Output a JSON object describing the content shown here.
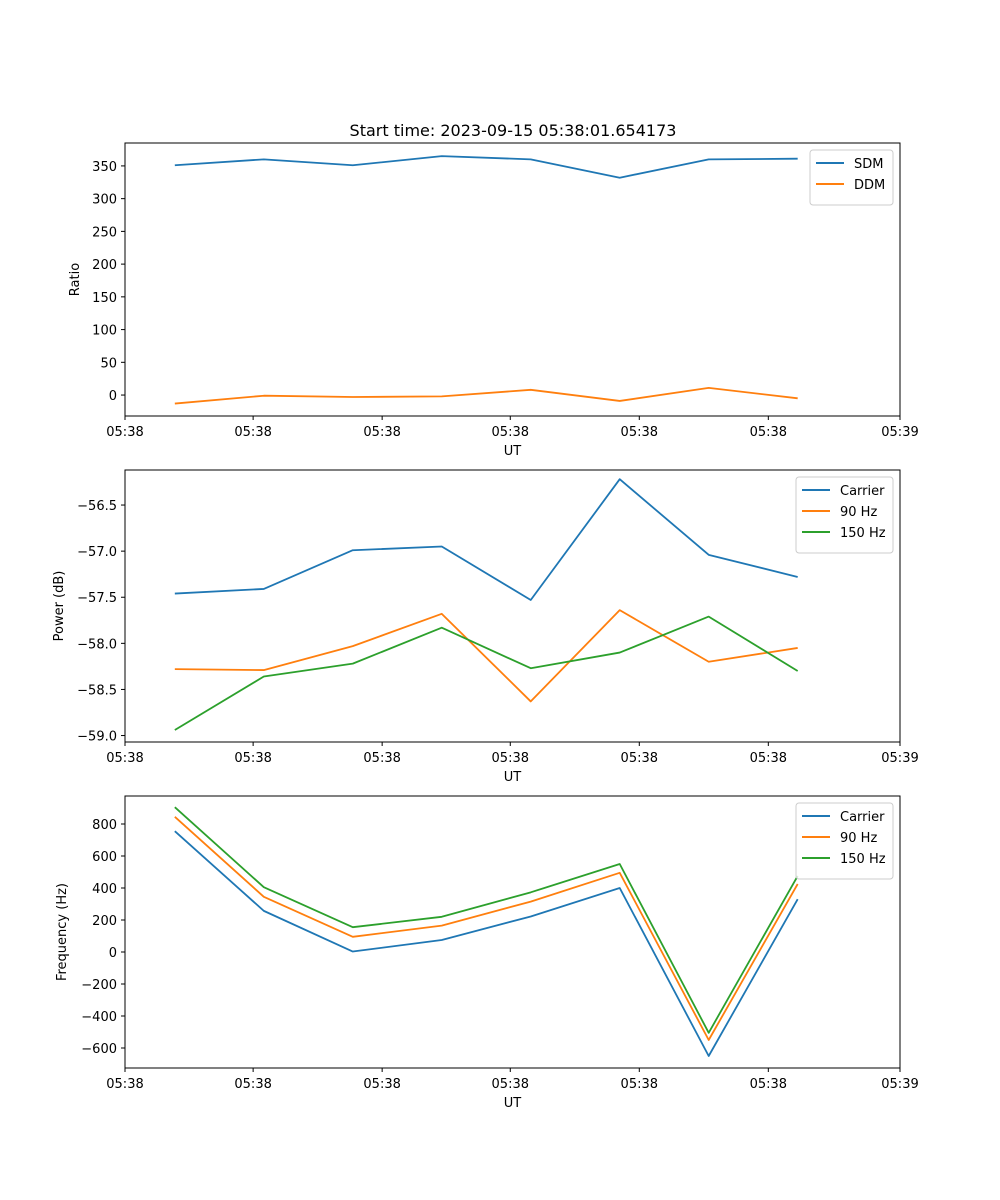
{
  "figure_title": "Start time: 2023-09-15 05:38:01.654173",
  "chart_data": [
    {
      "type": "line",
      "title": "Start time: 2023-09-15 05:38:01.654173",
      "xlabel": "UT",
      "ylabel": "Ratio",
      "x": [
        1,
        2,
        3,
        4,
        5,
        6,
        7,
        8
      ],
      "xlim": [
        0.44,
        9.15
      ],
      "xticks": [
        0.44,
        1.88,
        3.33,
        4.77,
        6.22,
        7.67,
        9.15
      ],
      "xtick_labels": [
        "05:38",
        "05:38",
        "05:38",
        "05:38",
        "05:38",
        "05:38",
        "05:39"
      ],
      "ylim": [
        -32,
        385
      ],
      "yticks": [
        0,
        50,
        100,
        150,
        200,
        250,
        300,
        350
      ],
      "ytick_labels": [
        "0",
        "50",
        "100",
        "150",
        "200",
        "250",
        "300",
        "350"
      ],
      "legend_position": "top-right",
      "series": [
        {
          "name": "SDM",
          "color": "#1f77b4",
          "values": [
            351,
            360,
            351,
            365,
            360,
            332,
            360,
            361
          ]
        },
        {
          "name": "DDM",
          "color": "#ff7f0e",
          "values": [
            -13,
            -1,
            -3,
            -2,
            8,
            -9,
            11,
            -5
          ]
        }
      ]
    },
    {
      "type": "line",
      "title": "",
      "xlabel": "UT",
      "ylabel": "Power (dB)",
      "x": [
        1,
        2,
        3,
        4,
        5,
        6,
        7,
        8
      ],
      "xlim": [
        0.44,
        9.15
      ],
      "xticks": [
        0.44,
        1.88,
        3.33,
        4.77,
        6.22,
        7.67,
        9.15
      ],
      "xtick_labels": [
        "05:38",
        "05:38",
        "05:38",
        "05:38",
        "05:38",
        "05:38",
        "05:39"
      ],
      "ylim": [
        -59.07,
        -56.12
      ],
      "yticks": [
        -59.0,
        -58.5,
        -58.0,
        -57.5,
        -57.0,
        -56.5
      ],
      "ytick_labels": [
        "−59.0",
        "−58.5",
        "−58.0",
        "−57.5",
        "−57.0",
        "−56.5"
      ],
      "legend_position": "top-right",
      "series": [
        {
          "name": "Carrier",
          "color": "#1f77b4",
          "values": [
            -57.46,
            -57.41,
            -56.99,
            -56.95,
            -57.53,
            -56.22,
            -57.04,
            -57.28
          ]
        },
        {
          "name": "90 Hz",
          "color": "#ff7f0e",
          "values": [
            -58.28,
            -58.29,
            -58.03,
            -57.68,
            -58.63,
            -57.64,
            -58.2,
            -58.05
          ]
        },
        {
          "name": "150 Hz",
          "color": "#2ca02c",
          "values": [
            -58.94,
            -58.36,
            -58.22,
            -57.83,
            -58.27,
            -58.1,
            -57.71,
            -58.3
          ]
        }
      ]
    },
    {
      "type": "line",
      "title": "",
      "xlabel": "UT",
      "ylabel": "Frequency (Hz)",
      "x": [
        1,
        2,
        3,
        4,
        5,
        6,
        7,
        8
      ],
      "xlim": [
        0.44,
        9.15
      ],
      "xticks": [
        0.44,
        1.88,
        3.33,
        4.77,
        6.22,
        7.67,
        9.15
      ],
      "xtick_labels": [
        "05:38",
        "05:38",
        "05:38",
        "05:38",
        "05:38",
        "05:38",
        "05:39"
      ],
      "ylim": [
        -725,
        975
      ],
      "yticks": [
        -600,
        -400,
        -200,
        0,
        200,
        400,
        600,
        800
      ],
      "ytick_labels": [
        "−600",
        "−400",
        "−200",
        "0",
        "200",
        "400",
        "600",
        "800"
      ],
      "legend_position": "top-right",
      "series": [
        {
          "name": "Carrier",
          "color": "#1f77b4",
          "values": [
            755,
            257,
            3,
            75,
            222,
            400,
            -650,
            330
          ]
        },
        {
          "name": "90 Hz",
          "color": "#ff7f0e",
          "values": [
            845,
            345,
            95,
            165,
            315,
            495,
            -550,
            425
          ]
        },
        {
          "name": "150 Hz",
          "color": "#2ca02c",
          "values": [
            905,
            405,
            155,
            220,
            373,
            550,
            -505,
            475
          ]
        }
      ]
    }
  ]
}
